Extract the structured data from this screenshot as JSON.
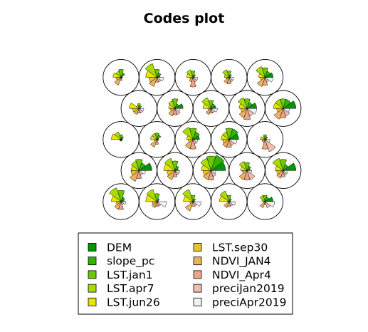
{
  "chart_data": {
    "type": "som-codes",
    "title": "Codes plot",
    "grid": {
      "xdim": 5,
      "ydim": 5,
      "topology": "hexagonal"
    },
    "variables": [
      "DEM",
      "slope_pc",
      "LST.jan1",
      "LST.apr7",
      "LST.jun26",
      "LST.sep30",
      "NDVI_JAN4",
      "NDVI_Apr4",
      "preciJan2019",
      "preciApr2019"
    ],
    "colors": [
      "#009600",
      "#33b300",
      "#6dc800",
      "#aadb00",
      "#e6e600",
      "#e8c32e",
      "#ebb25e",
      "#eda586",
      "#f0bcaf",
      "#f2f2f2"
    ],
    "legend": {
      "position": "bottom",
      "columns": [
        [
          "DEM",
          "slope_pc",
          "LST.jan1",
          "LST.apr7",
          "LST.jun26"
        ],
        [
          "LST.sep30",
          "NDVI_JAN4",
          "NDVI_Apr4",
          "preciJan2019",
          "preciApr2019"
        ]
      ]
    },
    "codes": [
      [
        0.2,
        0.3,
        0.7,
        0.9,
        0.6,
        0.3,
        0.5,
        0.5,
        0.2,
        0.3
      ],
      [
        0.1,
        0.2,
        0.5,
        0.8,
        0.7,
        0.3,
        0.4,
        0.3,
        0.3,
        0.6
      ],
      [
        0.1,
        0.2,
        0.4,
        0.8,
        0.6,
        0.2,
        0.6,
        0.3,
        0.3,
        0.5
      ],
      [
        0.1,
        0.2,
        0.4,
        0.7,
        0.6,
        0.1,
        0.4,
        0.3,
        0.3,
        0.4
      ],
      [
        0.5,
        0.3,
        0.4,
        0.4,
        0.2,
        0.1,
        0.4,
        0.2,
        0.4,
        0.6
      ],
      [
        0.8,
        0.5,
        0.7,
        0.6,
        0.5,
        0.5,
        0.7,
        0.5,
        0.3,
        0.4
      ],
      [
        0.2,
        0.3,
        0.6,
        0.8,
        0.7,
        0.5,
        0.6,
        0.4,
        0.3,
        0.3
      ],
      [
        0.9,
        1.0,
        0.9,
        0.8,
        0.6,
        0.5,
        0.6,
        0.6,
        0.4,
        0.3
      ],
      [
        0.2,
        0.3,
        0.5,
        0.6,
        0.4,
        0.3,
        0.6,
        0.6,
        0.6,
        0.3
      ],
      [
        0.8,
        0.4,
        0.7,
        0.8,
        0.5,
        0.4,
        0.5,
        0.4,
        0.3,
        0.3
      ],
      [
        0.1,
        0.2,
        0.3,
        0.5,
        0.6,
        0.1,
        0.1,
        0.1,
        0.1,
        0.1
      ],
      [
        0.1,
        0.3,
        0.4,
        0.4,
        0.4,
        0.2,
        0.5,
        0.3,
        0.1,
        0.1
      ],
      [
        0.4,
        0.5,
        0.7,
        0.8,
        0.4,
        0.3,
        0.6,
        0.6,
        0.3,
        0.3
      ],
      [
        0.6,
        0.7,
        0.7,
        0.5,
        0.5,
        0.4,
        0.5,
        0.5,
        0.4,
        0.5
      ],
      [
        0.1,
        0.2,
        0.3,
        0.2,
        0.3,
        0.2,
        0.2,
        0.6,
        0.8,
        0.3
      ],
      [
        0.1,
        0.2,
        0.3,
        0.2,
        0.6,
        0.4,
        0.4,
        0.3,
        0.3,
        0.3
      ],
      [
        0.5,
        0.3,
        0.6,
        0.5,
        0.4,
        0.3,
        0.5,
        0.4,
        0.4,
        0.3
      ],
      [
        0.3,
        0.3,
        0.5,
        0.7,
        0.5,
        0.2,
        0.4,
        0.3,
        0.3,
        0.4
      ],
      [
        0.6,
        0.4,
        0.6,
        0.7,
        0.5,
        0.4,
        0.6,
        0.7,
        0.5,
        0.6
      ],
      [
        0.8,
        0.6,
        0.6,
        0.6,
        0.6,
        0.4,
        0.7,
        0.6,
        0.5,
        0.4
      ],
      [
        0.1,
        0.3,
        0.5,
        0.4,
        0.5,
        0.3,
        0.5,
        0.2,
        0.1,
        0.1
      ],
      [
        0.2,
        0.3,
        0.5,
        0.9,
        0.7,
        0.5,
        0.6,
        0.3,
        0.3,
        0.4
      ],
      [
        0.1,
        0.2,
        0.4,
        0.5,
        0.4,
        0.2,
        0.3,
        0.6,
        0.3,
        0.3
      ],
      [
        0.1,
        0.2,
        0.4,
        0.5,
        0.3,
        0.2,
        0.4,
        0.4,
        0.3,
        0.3
      ],
      [
        0.5,
        0.4,
        0.6,
        0.7,
        0.4,
        0.3,
        0.6,
        0.5,
        0.3,
        0.5
      ]
    ]
  }
}
